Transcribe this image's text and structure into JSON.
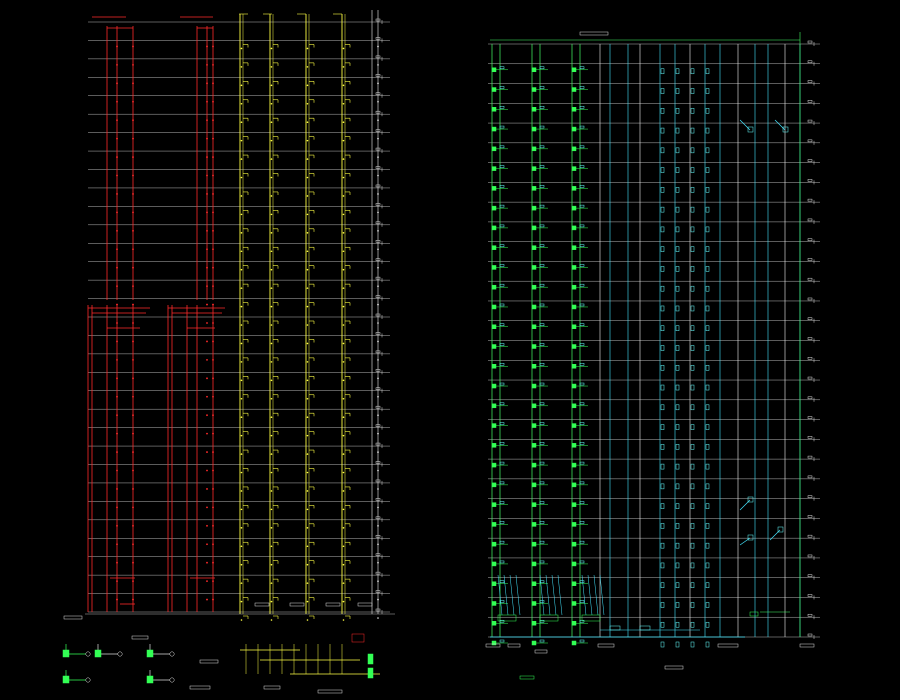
{
  "drawing": {
    "background": "#000000",
    "colors": {
      "floor_line": "#b8b8b8",
      "fire_riser": "#ff2a2a",
      "drain_riser": "#ffff44",
      "white_riser": "#f0f0f0",
      "cold_water_riser": "#44ff66",
      "hot_water_riser": "#44e6ff",
      "fixture_green": "#33ff55",
      "fixture_cyan": "#66ffff",
      "label_white": "#dddddd"
    },
    "left_sheet": {
      "floor_count": 33,
      "riser_groups": [
        "fire-upper-a",
        "fire-upper-b",
        "fire-lower-a",
        "fire-lower-b",
        "drain-1",
        "drain-2",
        "drain-3",
        "drain-4",
        "white-edge"
      ]
    },
    "right_sheet": {
      "floor_count": 31,
      "riser_groups": [
        "cold-water-1",
        "cold-water-2",
        "cold-water-3",
        "hot-water-1",
        "hot-water-2",
        "hot-water-3",
        "hot-water-4",
        "hot-water-5",
        "hot-water-6"
      ]
    },
    "icons": [
      "pump-icon",
      "valve-icon",
      "meter-icon",
      "floor-drain-icon",
      "water-tank-icon"
    ]
  }
}
